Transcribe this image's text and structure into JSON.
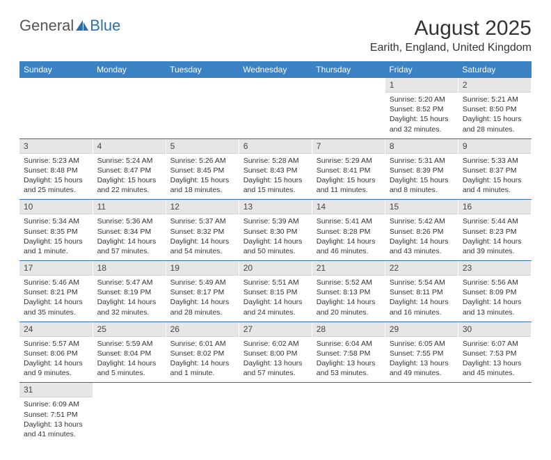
{
  "logo": {
    "text1": "General",
    "text2": "Blue"
  },
  "header": {
    "month_title": "August 2025",
    "location": "Earith, England, United Kingdom"
  },
  "colors": {
    "header_bg": "#3b82c4",
    "header_text": "#ffffff",
    "daynum_bg": "#e6e6e6",
    "border": "#2b6fb0",
    "logo_blue": "#2b6fb0",
    "text": "#333333"
  },
  "weekdays": [
    "Sunday",
    "Monday",
    "Tuesday",
    "Wednesday",
    "Thursday",
    "Friday",
    "Saturday"
  ],
  "weeks": [
    [
      {
        "empty": true
      },
      {
        "empty": true
      },
      {
        "empty": true
      },
      {
        "empty": true
      },
      {
        "empty": true
      },
      {
        "num": "1",
        "sunrise": "Sunrise: 5:20 AM",
        "sunset": "Sunset: 8:52 PM",
        "daylight": "Daylight: 15 hours and 32 minutes."
      },
      {
        "num": "2",
        "sunrise": "Sunrise: 5:21 AM",
        "sunset": "Sunset: 8:50 PM",
        "daylight": "Daylight: 15 hours and 28 minutes."
      }
    ],
    [
      {
        "num": "3",
        "sunrise": "Sunrise: 5:23 AM",
        "sunset": "Sunset: 8:48 PM",
        "daylight": "Daylight: 15 hours and 25 minutes."
      },
      {
        "num": "4",
        "sunrise": "Sunrise: 5:24 AM",
        "sunset": "Sunset: 8:47 PM",
        "daylight": "Daylight: 15 hours and 22 minutes."
      },
      {
        "num": "5",
        "sunrise": "Sunrise: 5:26 AM",
        "sunset": "Sunset: 8:45 PM",
        "daylight": "Daylight: 15 hours and 18 minutes."
      },
      {
        "num": "6",
        "sunrise": "Sunrise: 5:28 AM",
        "sunset": "Sunset: 8:43 PM",
        "daylight": "Daylight: 15 hours and 15 minutes."
      },
      {
        "num": "7",
        "sunrise": "Sunrise: 5:29 AM",
        "sunset": "Sunset: 8:41 PM",
        "daylight": "Daylight: 15 hours and 11 minutes."
      },
      {
        "num": "8",
        "sunrise": "Sunrise: 5:31 AM",
        "sunset": "Sunset: 8:39 PM",
        "daylight": "Daylight: 15 hours and 8 minutes."
      },
      {
        "num": "9",
        "sunrise": "Sunrise: 5:33 AM",
        "sunset": "Sunset: 8:37 PM",
        "daylight": "Daylight: 15 hours and 4 minutes."
      }
    ],
    [
      {
        "num": "10",
        "sunrise": "Sunrise: 5:34 AM",
        "sunset": "Sunset: 8:35 PM",
        "daylight": "Daylight: 15 hours and 1 minute."
      },
      {
        "num": "11",
        "sunrise": "Sunrise: 5:36 AM",
        "sunset": "Sunset: 8:34 PM",
        "daylight": "Daylight: 14 hours and 57 minutes."
      },
      {
        "num": "12",
        "sunrise": "Sunrise: 5:37 AM",
        "sunset": "Sunset: 8:32 PM",
        "daylight": "Daylight: 14 hours and 54 minutes."
      },
      {
        "num": "13",
        "sunrise": "Sunrise: 5:39 AM",
        "sunset": "Sunset: 8:30 PM",
        "daylight": "Daylight: 14 hours and 50 minutes."
      },
      {
        "num": "14",
        "sunrise": "Sunrise: 5:41 AM",
        "sunset": "Sunset: 8:28 PM",
        "daylight": "Daylight: 14 hours and 46 minutes."
      },
      {
        "num": "15",
        "sunrise": "Sunrise: 5:42 AM",
        "sunset": "Sunset: 8:26 PM",
        "daylight": "Daylight: 14 hours and 43 minutes."
      },
      {
        "num": "16",
        "sunrise": "Sunrise: 5:44 AM",
        "sunset": "Sunset: 8:23 PM",
        "daylight": "Daylight: 14 hours and 39 minutes."
      }
    ],
    [
      {
        "num": "17",
        "sunrise": "Sunrise: 5:46 AM",
        "sunset": "Sunset: 8:21 PM",
        "daylight": "Daylight: 14 hours and 35 minutes."
      },
      {
        "num": "18",
        "sunrise": "Sunrise: 5:47 AM",
        "sunset": "Sunset: 8:19 PM",
        "daylight": "Daylight: 14 hours and 32 minutes."
      },
      {
        "num": "19",
        "sunrise": "Sunrise: 5:49 AM",
        "sunset": "Sunset: 8:17 PM",
        "daylight": "Daylight: 14 hours and 28 minutes."
      },
      {
        "num": "20",
        "sunrise": "Sunrise: 5:51 AM",
        "sunset": "Sunset: 8:15 PM",
        "daylight": "Daylight: 14 hours and 24 minutes."
      },
      {
        "num": "21",
        "sunrise": "Sunrise: 5:52 AM",
        "sunset": "Sunset: 8:13 PM",
        "daylight": "Daylight: 14 hours and 20 minutes."
      },
      {
        "num": "22",
        "sunrise": "Sunrise: 5:54 AM",
        "sunset": "Sunset: 8:11 PM",
        "daylight": "Daylight: 14 hours and 16 minutes."
      },
      {
        "num": "23",
        "sunrise": "Sunrise: 5:56 AM",
        "sunset": "Sunset: 8:09 PM",
        "daylight": "Daylight: 14 hours and 13 minutes."
      }
    ],
    [
      {
        "num": "24",
        "sunrise": "Sunrise: 5:57 AM",
        "sunset": "Sunset: 8:06 PM",
        "daylight": "Daylight: 14 hours and 9 minutes."
      },
      {
        "num": "25",
        "sunrise": "Sunrise: 5:59 AM",
        "sunset": "Sunset: 8:04 PM",
        "daylight": "Daylight: 14 hours and 5 minutes."
      },
      {
        "num": "26",
        "sunrise": "Sunrise: 6:01 AM",
        "sunset": "Sunset: 8:02 PM",
        "daylight": "Daylight: 14 hours and 1 minute."
      },
      {
        "num": "27",
        "sunrise": "Sunrise: 6:02 AM",
        "sunset": "Sunset: 8:00 PM",
        "daylight": "Daylight: 13 hours and 57 minutes."
      },
      {
        "num": "28",
        "sunrise": "Sunrise: 6:04 AM",
        "sunset": "Sunset: 7:58 PM",
        "daylight": "Daylight: 13 hours and 53 minutes."
      },
      {
        "num": "29",
        "sunrise": "Sunrise: 6:05 AM",
        "sunset": "Sunset: 7:55 PM",
        "daylight": "Daylight: 13 hours and 49 minutes."
      },
      {
        "num": "30",
        "sunrise": "Sunrise: 6:07 AM",
        "sunset": "Sunset: 7:53 PM",
        "daylight": "Daylight: 13 hours and 45 minutes."
      }
    ],
    [
      {
        "num": "31",
        "sunrise": "Sunrise: 6:09 AM",
        "sunset": "Sunset: 7:51 PM",
        "daylight": "Daylight: 13 hours and 41 minutes."
      },
      {
        "empty": true
      },
      {
        "empty": true
      },
      {
        "empty": true
      },
      {
        "empty": true
      },
      {
        "empty": true
      },
      {
        "empty": true
      }
    ]
  ]
}
